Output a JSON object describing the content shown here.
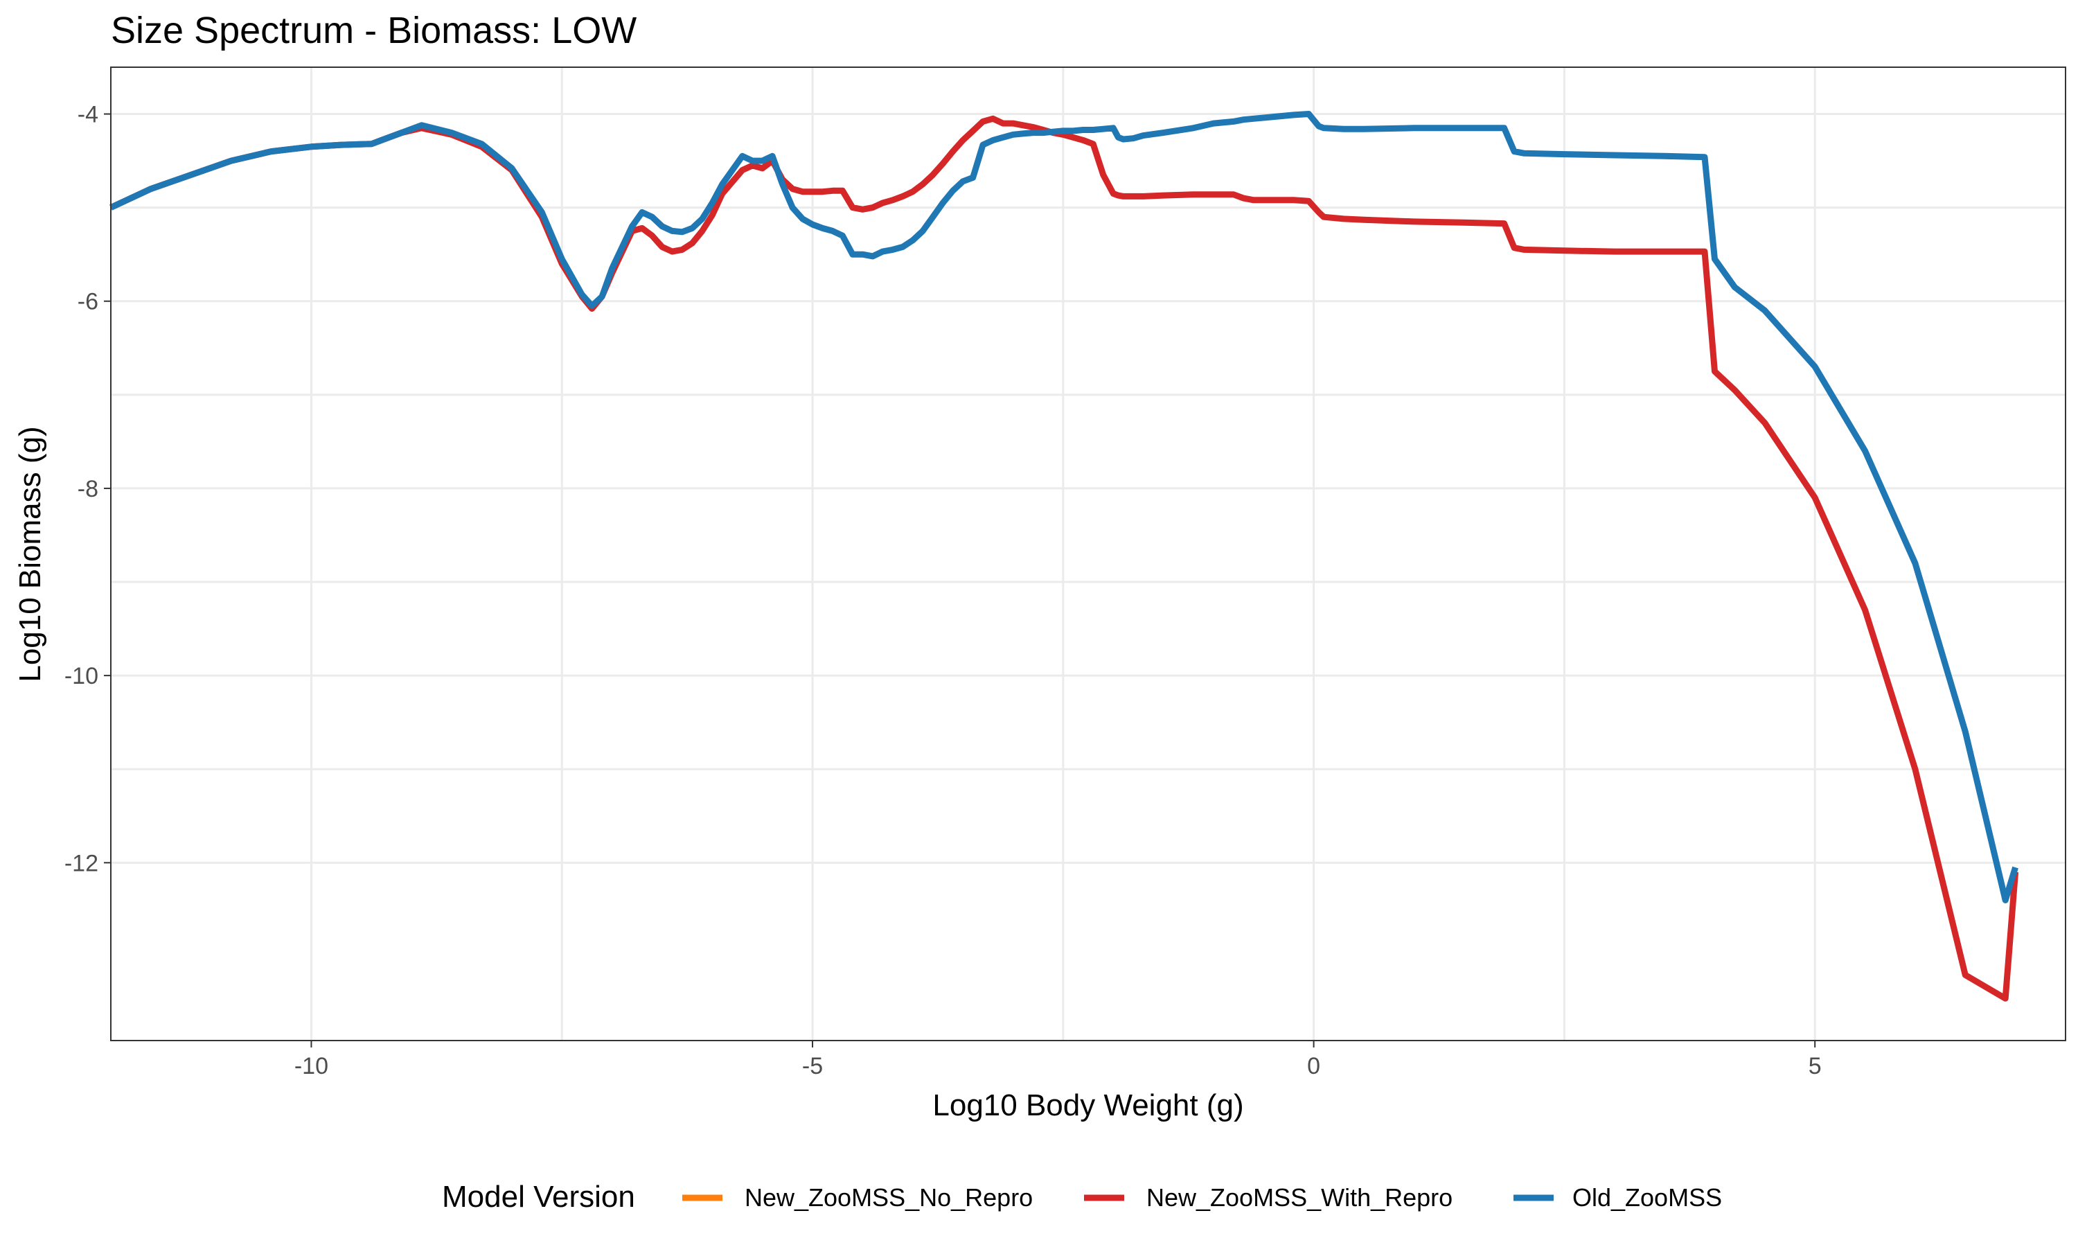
{
  "chart_data": {
    "type": "line",
    "title": "Size Spectrum - Biomass: LOW",
    "xlabel": "Log10 Body Weight (g)",
    "ylabel": "Log10 Biomass (g)",
    "xlim": [
      -12.0,
      7.5
    ],
    "ylim": [
      -13.9,
      -3.5
    ],
    "x_ticks": [
      -10,
      -5,
      0,
      5
    ],
    "x_tick_labels": [
      "-10",
      "-5",
      "0",
      "5"
    ],
    "y_ticks": [
      -12,
      -10,
      -8,
      -6,
      -4
    ],
    "y_tick_labels": [
      "-12",
      "-10",
      "-8",
      "-6",
      "-4"
    ],
    "grid": true,
    "legend": {
      "title": "Model Version",
      "position": "bottom",
      "entries": [
        "New_ZooMSS_No_Repro",
        "New_ZooMSS_With_Repro",
        "Old_ZooMSS"
      ]
    },
    "series": [
      {
        "name": "New_ZooMSS_No_Repro",
        "color": "#ff7f0e",
        "x": [],
        "y": []
      },
      {
        "name": "New_ZooMSS_With_Repro",
        "color": "#d62728",
        "x": [
          -12.0,
          -11.6,
          -11.2,
          -10.8,
          -10.4,
          -10.0,
          -9.7,
          -9.4,
          -9.3,
          -9.1,
          -8.9,
          -8.6,
          -8.3,
          -8.0,
          -7.7,
          -7.5,
          -7.3,
          -7.2,
          -7.1,
          -7.0,
          -6.8,
          -6.7,
          -6.6,
          -6.5,
          -6.4,
          -6.3,
          -6.2,
          -6.1,
          -6.0,
          -5.9,
          -5.7,
          -5.6,
          -5.5,
          -5.4,
          -5.3,
          -5.2,
          -5.1,
          -5.0,
          -4.9,
          -4.8,
          -4.7,
          -4.6,
          -4.5,
          -4.4,
          -4.3,
          -4.2,
          -4.1,
          -4.0,
          -3.9,
          -3.8,
          -3.7,
          -3.6,
          -3.5,
          -3.4,
          -3.3,
          -3.2,
          -3.1,
          -3.0,
          -2.9,
          -2.8,
          -2.7,
          -2.6,
          -2.5,
          -2.4,
          -2.3,
          -2.2,
          -2.1,
          -2.0,
          -1.95,
          -1.9,
          -1.8,
          -1.7,
          -1.5,
          -1.2,
          -1.0,
          -0.8,
          -0.7,
          -0.6,
          -0.4,
          -0.2,
          -0.05,
          0.05,
          0.1,
          0.3,
          0.5,
          1.0,
          1.5,
          1.9,
          2.0,
          2.1,
          2.5,
          3.0,
          3.5,
          3.9,
          4.0,
          4.2,
          4.5,
          5.0,
          5.5,
          6.0,
          6.5,
          6.9,
          7.0
        ],
        "y": [
          -5.0,
          -4.8,
          -4.65,
          -4.5,
          -4.4,
          -4.35,
          -4.33,
          -4.32,
          -4.28,
          -4.2,
          -4.15,
          -4.22,
          -4.35,
          -4.6,
          -5.1,
          -5.6,
          -5.95,
          -6.08,
          -5.95,
          -5.7,
          -5.25,
          -5.22,
          -5.3,
          -5.42,
          -5.47,
          -5.45,
          -5.38,
          -5.25,
          -5.08,
          -4.85,
          -4.6,
          -4.55,
          -4.58,
          -4.5,
          -4.7,
          -4.8,
          -4.83,
          -4.83,
          -4.83,
          -4.82,
          -4.82,
          -5.0,
          -5.02,
          -5.0,
          -4.95,
          -4.92,
          -4.88,
          -4.83,
          -4.75,
          -4.65,
          -4.53,
          -4.4,
          -4.28,
          -4.18,
          -4.08,
          -4.05,
          -4.1,
          -4.1,
          -4.12,
          -4.14,
          -4.17,
          -4.2,
          -4.22,
          -4.25,
          -4.28,
          -4.32,
          -4.65,
          -4.85,
          -4.87,
          -4.88,
          -4.88,
          -4.88,
          -4.87,
          -4.86,
          -4.86,
          -4.86,
          -4.9,
          -4.92,
          -4.92,
          -4.92,
          -4.93,
          -5.05,
          -5.1,
          -5.12,
          -5.13,
          -5.15,
          -5.16,
          -5.17,
          -5.43,
          -5.45,
          -5.46,
          -5.47,
          -5.47,
          -5.47,
          -6.75,
          -6.95,
          -7.3,
          -8.1,
          -9.3,
          -11.0,
          -13.2,
          -13.45,
          -12.1
        ]
      },
      {
        "name": "Old_ZooMSS",
        "color": "#1f77b4",
        "x": [
          -12.0,
          -11.6,
          -11.2,
          -10.8,
          -10.4,
          -10.0,
          -9.7,
          -9.4,
          -9.3,
          -9.1,
          -8.9,
          -8.6,
          -8.3,
          -8.0,
          -7.7,
          -7.5,
          -7.3,
          -7.2,
          -7.1,
          -7.0,
          -6.8,
          -6.7,
          -6.6,
          -6.5,
          -6.4,
          -6.3,
          -6.2,
          -6.1,
          -6.0,
          -5.9,
          -5.7,
          -5.6,
          -5.5,
          -5.4,
          -5.3,
          -5.2,
          -5.1,
          -5.0,
          -4.9,
          -4.8,
          -4.7,
          -4.6,
          -4.5,
          -4.4,
          -4.3,
          -4.2,
          -4.1,
          -4.0,
          -3.9,
          -3.8,
          -3.7,
          -3.6,
          -3.5,
          -3.4,
          -3.3,
          -3.2,
          -3.1,
          -3.0,
          -2.9,
          -2.8,
          -2.7,
          -2.6,
          -2.5,
          -2.4,
          -2.3,
          -2.2,
          -2.1,
          -2.0,
          -1.95,
          -1.9,
          -1.8,
          -1.7,
          -1.5,
          -1.2,
          -1.0,
          -0.8,
          -0.7,
          -0.6,
          -0.4,
          -0.2,
          -0.05,
          0.05,
          0.1,
          0.3,
          0.5,
          1.0,
          1.5,
          1.9,
          2.0,
          2.1,
          2.5,
          3.0,
          3.5,
          3.9,
          4.0,
          4.2,
          4.5,
          5.0,
          5.5,
          6.0,
          6.5,
          6.9,
          7.0
        ],
        "y": [
          -5.0,
          -4.8,
          -4.65,
          -4.5,
          -4.4,
          -4.35,
          -4.33,
          -4.32,
          -4.28,
          -4.2,
          -4.12,
          -4.2,
          -4.32,
          -4.58,
          -5.05,
          -5.55,
          -5.93,
          -6.05,
          -5.95,
          -5.65,
          -5.2,
          -5.05,
          -5.1,
          -5.2,
          -5.25,
          -5.26,
          -5.22,
          -5.12,
          -4.95,
          -4.75,
          -4.45,
          -4.5,
          -4.5,
          -4.45,
          -4.75,
          -5.0,
          -5.12,
          -5.18,
          -5.22,
          -5.25,
          -5.3,
          -5.5,
          -5.5,
          -5.52,
          -5.47,
          -5.45,
          -5.42,
          -5.35,
          -5.25,
          -5.1,
          -4.95,
          -4.82,
          -4.72,
          -4.68,
          -4.33,
          -4.28,
          -4.25,
          -4.22,
          -4.21,
          -4.2,
          -4.2,
          -4.19,
          -4.18,
          -4.18,
          -4.17,
          -4.17,
          -4.16,
          -4.15,
          -4.25,
          -4.27,
          -4.26,
          -4.23,
          -4.2,
          -4.15,
          -4.1,
          -4.08,
          -4.06,
          -4.05,
          -4.03,
          -4.01,
          -4.0,
          -4.13,
          -4.15,
          -4.16,
          -4.16,
          -4.15,
          -4.15,
          -4.15,
          -4.4,
          -4.42,
          -4.43,
          -4.44,
          -4.45,
          -4.46,
          -5.55,
          -5.85,
          -6.1,
          -6.7,
          -7.6,
          -8.8,
          -10.6,
          -12.4,
          -12.05
        ]
      }
    ]
  }
}
